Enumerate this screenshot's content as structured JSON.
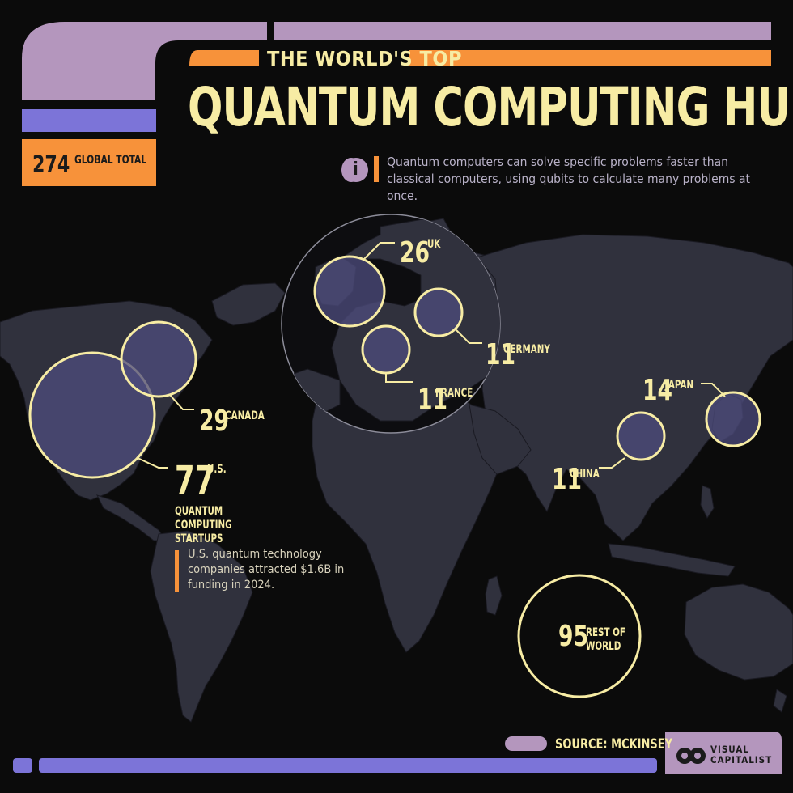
{
  "header": {
    "kicker": "THE WORLD'S TOP",
    "title": "QUANTUM COMPUTING HUBS",
    "total_value": "274",
    "total_label": "GLOBAL TOTAL",
    "info_icon": "i",
    "info_text": "Quantum computers can solve specific problems faster than classical computers, using qubits to calculate many problems at once."
  },
  "hubs": [
    {
      "value": "77",
      "label": "U.S.",
      "sublabel": "QUANTUM COMPUTING STARTUPS"
    },
    {
      "value": "29",
      "label": "CANADA"
    },
    {
      "value": "26",
      "label": "UK"
    },
    {
      "value": "11",
      "label": "GERMANY"
    },
    {
      "value": "11",
      "label": "FRANCE"
    },
    {
      "value": "14",
      "label": "JAPAN"
    },
    {
      "value": "11",
      "label": "CHINA"
    },
    {
      "value": "95",
      "label": "REST OF WORLD"
    }
  ],
  "us_note": "U.S. quantum technology companies attracted $1.6B in funding in 2024.",
  "footer": {
    "source": "SOURCE: MCKINSEY",
    "brand_line1": "VISUAL",
    "brand_line2": "CAPITALIST"
  },
  "colors": {
    "background": "#0b0b0b",
    "land": "#30313d",
    "bubble_fill": "#4e4c7e",
    "bubble_stroke": "#f7eca4",
    "accent_orange": "#f7923a",
    "accent_lilac": "#b496bd",
    "accent_blue": "#7c74d8",
    "text_cream": "#f7eca4"
  }
}
